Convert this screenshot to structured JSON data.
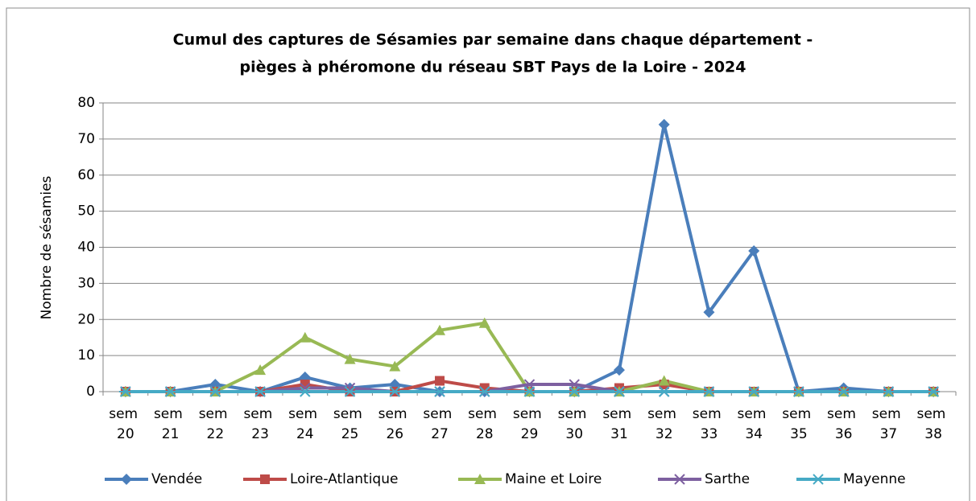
{
  "chart_data": {
    "type": "line",
    "title": [
      "Cumul des captures de Sésamies par semaine dans chaque département -",
      "pièges à phéromone du réseau SBT Pays de la Loire - 2024"
    ],
    "y_label": "Nombre de sésamies",
    "categories": [
      "sem 20",
      "sem 21",
      "sem 22",
      "sem 23",
      "sem 24",
      "sem 25",
      "sem 26",
      "sem 27",
      "sem 28",
      "sem 29",
      "sem 30",
      "sem 31",
      "sem 32",
      "sem 33",
      "sem 34",
      "sem 35",
      "sem 36",
      "sem 37",
      "sem 38"
    ],
    "series": [
      {
        "name": "Vendée",
        "color": "#4a7ebb",
        "marker": "diamond",
        "values": [
          0,
          0,
          2,
          0,
          4,
          1,
          2,
          0,
          0,
          0,
          0,
          6,
          74,
          22,
          39,
          0,
          1,
          0,
          0
        ]
      },
      {
        "name": "Loire-Atlantique",
        "color": "#be4b48",
        "marker": "square",
        "values": [
          0,
          0,
          0,
          0,
          2,
          0,
          0,
          3,
          1,
          0,
          0,
          1,
          2,
          0,
          0,
          0,
          0,
          0,
          0
        ]
      },
      {
        "name": "Maine et Loire",
        "color": "#98b954",
        "marker": "triangle",
        "values": [
          0,
          0,
          0,
          6,
          15,
          9,
          7,
          17,
          19,
          0,
          0,
          0,
          3,
          0,
          0,
          0,
          0,
          0,
          0
        ]
      },
      {
        "name": "Sarthe",
        "color": "#7d60a0",
        "marker": "x",
        "values": [
          0,
          0,
          0,
          0,
          1,
          1,
          0,
          0,
          0,
          2,
          2,
          0,
          0,
          0,
          0,
          0,
          0,
          0,
          0
        ]
      },
      {
        "name": "Mayenne",
        "color": "#46aac5",
        "marker": "star",
        "values": [
          0,
          0,
          0,
          0,
          0,
          0,
          0,
          0,
          0,
          0,
          0,
          0,
          0,
          0,
          0,
          0,
          0,
          0,
          0
        ]
      }
    ],
    "ylim": [
      0,
      80
    ],
    "yticks": [
      0,
      10,
      20,
      30,
      40,
      50,
      60,
      70,
      80
    ],
    "grid": true,
    "legend": "bottom"
  }
}
